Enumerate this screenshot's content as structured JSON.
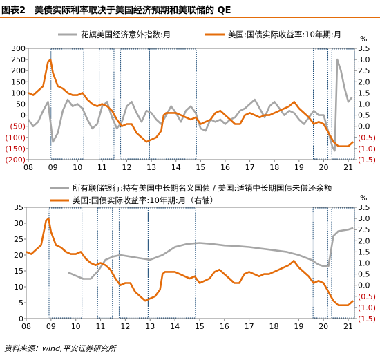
{
  "figure": {
    "number": "图表2",
    "title": "美债实际利率取决于美国经济预期和美联储的 QE",
    "source": "资料来源：wind,平安证券研究所"
  },
  "colors": {
    "gray": "#a6a6a6",
    "orange": "#e46c0a",
    "negative": "#c00000",
    "shade_border": "#1f4e79"
  },
  "chart_data": [
    {
      "type": "line",
      "x_ticks": [
        "08",
        "09",
        "10",
        "11",
        "12",
        "13",
        "14",
        "15",
        "16",
        "17",
        "18",
        "19",
        "20",
        "21"
      ],
      "x_range": [
        2008.0,
        2021.25
      ],
      "left_axis": {
        "ticks": [
          "300",
          "250",
          "200",
          "150",
          "100",
          "50",
          "0",
          "(50)",
          "(100)",
          "(150)",
          "(200)"
        ],
        "ylim": [
          -200,
          300
        ]
      },
      "right_axis": {
        "unit": "%",
        "ticks": [
          "3.5",
          "3.0",
          "2.5",
          "2.0",
          "1.5",
          "1.0",
          "0.5",
          "0.0",
          "(0.5)",
          "(1.0)",
          "(1.5)"
        ],
        "ylim": [
          -1.5,
          3.5
        ]
      },
      "shaded_periods": [
        [
          2008.92,
          2010.25
        ],
        [
          2010.88,
          2011.48
        ],
        [
          2011.75,
          2012.92
        ],
        [
          2012.92,
          2014.83
        ],
        [
          2019.58,
          2020.17
        ],
        [
          2020.33,
          2021.25
        ]
      ],
      "series": [
        {
          "name": "花旗美国经济意外指数:月",
          "axis": "left",
          "color": "#a6a6a6",
          "x": [
            2008.0,
            2008.2,
            2008.4,
            2008.6,
            2008.8,
            2009.0,
            2009.2,
            2009.4,
            2009.6,
            2009.8,
            2010.0,
            2010.2,
            2010.4,
            2010.6,
            2010.8,
            2011.0,
            2011.2,
            2011.4,
            2011.6,
            2011.8,
            2012.0,
            2012.2,
            2012.4,
            2012.6,
            2012.8,
            2013.0,
            2013.2,
            2013.4,
            2013.6,
            2013.8,
            2014.0,
            2014.2,
            2014.4,
            2014.6,
            2014.8,
            2015.0,
            2015.2,
            2015.4,
            2015.6,
            2015.8,
            2016.0,
            2016.2,
            2016.4,
            2016.6,
            2016.8,
            2017.0,
            2017.2,
            2017.4,
            2017.6,
            2017.8,
            2018.0,
            2018.2,
            2018.4,
            2018.6,
            2018.8,
            2019.0,
            2019.2,
            2019.4,
            2019.6,
            2019.8,
            2020.0,
            2020.2,
            2020.35,
            2020.45,
            2020.55,
            2020.7,
            2020.85,
            2021.0,
            2021.15
          ],
          "y": [
            -20,
            -50,
            -30,
            20,
            60,
            -120,
            -80,
            20,
            70,
            40,
            50,
            30,
            -20,
            -60,
            -40,
            40,
            60,
            -10,
            -60,
            -30,
            40,
            60,
            10,
            -30,
            20,
            10,
            -20,
            -40,
            0,
            40,
            10,
            -30,
            20,
            40,
            10,
            -60,
            -70,
            -20,
            -30,
            -20,
            -40,
            -20,
            -10,
            20,
            30,
            50,
            70,
            30,
            -10,
            40,
            60,
            30,
            0,
            20,
            10,
            -20,
            -40,
            -10,
            20,
            0,
            0,
            -80,
            -140,
            -160,
            250,
            200,
            120,
            60,
            80
          ]
        },
        {
          "name": "美国:国债实际收益率:10年期:月",
          "axis": "right",
          "color": "#e46c0a",
          "x": [
            2008.0,
            2008.2,
            2008.4,
            2008.6,
            2008.8,
            2008.9,
            2009.0,
            2009.2,
            2009.4,
            2009.6,
            2009.8,
            2010.0,
            2010.2,
            2010.4,
            2010.6,
            2010.8,
            2011.0,
            2011.2,
            2011.4,
            2011.6,
            2011.8,
            2012.0,
            2012.2,
            2012.4,
            2012.6,
            2012.8,
            2013.0,
            2013.2,
            2013.4,
            2013.5,
            2013.6,
            2013.8,
            2014.0,
            2014.2,
            2014.4,
            2014.6,
            2014.8,
            2015.0,
            2015.2,
            2015.4,
            2015.6,
            2015.8,
            2016.0,
            2016.2,
            2016.4,
            2016.6,
            2016.8,
            2017.0,
            2017.2,
            2017.4,
            2017.6,
            2017.8,
            2018.0,
            2018.2,
            2018.4,
            2018.6,
            2018.8,
            2019.0,
            2019.2,
            2019.4,
            2019.6,
            2019.8,
            2020.0,
            2020.2,
            2020.4,
            2020.6,
            2020.8,
            2021.0,
            2021.2
          ],
          "y": [
            1.5,
            1.4,
            1.6,
            1.8,
            2.9,
            3.0,
            2.4,
            1.8,
            1.7,
            1.5,
            1.4,
            1.4,
            1.5,
            1.2,
            1.0,
            0.9,
            1.0,
            0.9,
            0.7,
            0.3,
            0.0,
            0.1,
            0.1,
            -0.3,
            -0.5,
            -0.7,
            -0.6,
            -0.5,
            -0.2,
            0.5,
            0.6,
            0.6,
            0.6,
            0.5,
            0.4,
            0.3,
            0.4,
            0.1,
            0.2,
            0.3,
            0.6,
            0.7,
            0.5,
            0.3,
            0.1,
            0.1,
            0.5,
            0.6,
            0.5,
            0.4,
            0.5,
            0.5,
            0.6,
            0.7,
            0.8,
            0.9,
            1.1,
            0.8,
            0.6,
            0.4,
            0.1,
            0.2,
            0.1,
            -0.3,
            -0.7,
            -0.9,
            -0.9,
            -0.9,
            -0.7
          ]
        }
      ]
    },
    {
      "type": "line",
      "x_ticks": [
        "08",
        "09",
        "10",
        "11",
        "12",
        "13",
        "14",
        "15",
        "16",
        "17",
        "18",
        "19",
        "20",
        "21"
      ],
      "x_range": [
        2008.0,
        2021.25
      ],
      "left_axis": {
        "ticks": [
          "35",
          "30",
          "25",
          "20",
          "15",
          "10",
          "5",
          "0"
        ],
        "ylim": [
          0,
          35
        ]
      },
      "right_axis": {
        "unit": "%",
        "ticks": [
          "3.5",
          "3.0",
          "2.5",
          "2.0",
          "1.5",
          "1.0",
          "0.5",
          "0.0",
          "(0.5)",
          "(1.0)",
          "(1.5)"
        ],
        "ylim": [
          -1.5,
          3.5
        ]
      },
      "shaded_periods": [
        [
          2008.92,
          2010.25
        ],
        [
          2010.88,
          2011.48
        ],
        [
          2011.75,
          2012.92
        ],
        [
          2012.92,
          2014.83
        ],
        [
          2019.58,
          2020.17
        ],
        [
          2020.33,
          2021.25
        ]
      ],
      "series": [
        {
          "name": "所有联储银行:持有美国中长期名义国债 / 美国:适销中长期国债未偿还余额",
          "axis": "left",
          "color": "#a6a6a6",
          "x": [
            2009.7,
            2010.0,
            2010.3,
            2010.6,
            2010.9,
            2011.2,
            2011.5,
            2011.8,
            2012.2,
            2012.6,
            2013.0,
            2013.5,
            2014.0,
            2014.5,
            2015.0,
            2015.5,
            2016.0,
            2016.5,
            2017.0,
            2017.5,
            2018.0,
            2018.5,
            2019.0,
            2019.5,
            2019.8,
            2020.0,
            2020.2,
            2020.4,
            2020.6,
            2021.0,
            2021.2
          ],
          "y": [
            14.5,
            13.5,
            12.5,
            12.5,
            15,
            18.5,
            19.5,
            20,
            19.5,
            19,
            18.5,
            20,
            22.5,
            23.5,
            23.8,
            23.5,
            23,
            22.8,
            22.5,
            22,
            21.5,
            21,
            20,
            18.5,
            17,
            16.5,
            16.5,
            26,
            27.5,
            28,
            28.5
          ]
        },
        {
          "name": "美国:国债实际收益率:10年期:月（右轴）",
          "axis": "right",
          "color": "#e46c0a",
          "x": [
            2008.0,
            2008.2,
            2008.4,
            2008.6,
            2008.8,
            2008.9,
            2009.0,
            2009.2,
            2009.4,
            2009.6,
            2009.8,
            2010.0,
            2010.2,
            2010.4,
            2010.6,
            2010.8,
            2011.0,
            2011.2,
            2011.4,
            2011.6,
            2011.8,
            2012.0,
            2012.2,
            2012.4,
            2012.6,
            2012.8,
            2013.0,
            2013.2,
            2013.4,
            2013.5,
            2013.6,
            2013.8,
            2014.0,
            2014.2,
            2014.4,
            2014.6,
            2014.8,
            2015.0,
            2015.2,
            2015.4,
            2015.6,
            2015.8,
            2016.0,
            2016.2,
            2016.4,
            2016.6,
            2016.8,
            2017.0,
            2017.2,
            2017.4,
            2017.6,
            2017.8,
            2018.0,
            2018.2,
            2018.4,
            2018.6,
            2018.8,
            2019.0,
            2019.2,
            2019.4,
            2019.6,
            2019.8,
            2020.0,
            2020.2,
            2020.4,
            2020.6,
            2020.8,
            2021.0,
            2021.2
          ],
          "y": [
            1.5,
            1.4,
            1.6,
            1.8,
            2.9,
            3.0,
            2.4,
            1.8,
            1.7,
            1.5,
            1.4,
            1.4,
            1.5,
            1.2,
            1.0,
            0.9,
            1.0,
            0.9,
            0.7,
            0.3,
            0.0,
            0.1,
            0.1,
            -0.3,
            -0.5,
            -0.7,
            -0.6,
            -0.5,
            -0.2,
            0.5,
            0.6,
            0.6,
            0.6,
            0.5,
            0.4,
            0.3,
            0.4,
            0.1,
            0.2,
            0.3,
            0.6,
            0.7,
            0.5,
            0.3,
            0.1,
            0.1,
            0.5,
            0.6,
            0.5,
            0.4,
            0.5,
            0.5,
            0.6,
            0.7,
            0.8,
            0.9,
            1.1,
            0.8,
            0.6,
            0.4,
            0.1,
            0.2,
            0.1,
            -0.3,
            -0.7,
            -0.9,
            -0.9,
            -0.9,
            -0.7
          ]
        }
      ]
    }
  ]
}
